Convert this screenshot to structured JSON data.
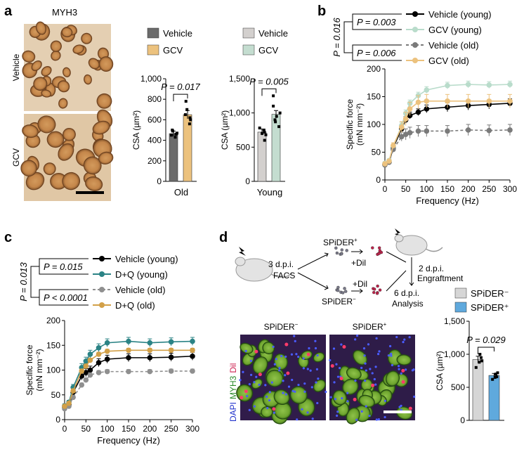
{
  "panels": {
    "a": {
      "letter": "a",
      "stain": "MYH3",
      "row_labels": [
        "Vehicle",
        "GCV"
      ],
      "legends": {
        "old": [
          "Vehicle",
          "GCV"
        ],
        "young": [
          "Vehicle",
          "GCV"
        ]
      },
      "colors": {
        "old_vehicle": "#6b6b6b",
        "old_gcv": "#ecc27e",
        "young_vehicle": "#d3d0ce",
        "young_gcv": "#c4ddd0"
      }
    },
    "b": {
      "letter": "b"
    },
    "c": {
      "letter": "c"
    },
    "d": {
      "letter": "d",
      "schematic": {
        "step1": "3 d.p.i.",
        "step1b": "FACS",
        "pos": "SPiDER",
        "pos_sup": "+",
        "neg": "SPiDER",
        "neg_sup": "−",
        "dil1": "+Dil",
        "dil2": "+Dil",
        "engraft1": "2 d.p.i.",
        "engraft2": "Engraftment",
        "analysis1": "6 d.p.i.",
        "analysis2": "Analysis"
      },
      "image_titles": [
        "SPiDER",
        "SPiDER"
      ],
      "image_title_sups": [
        "−",
        "+"
      ],
      "stain_labels": [
        "DAPI",
        "MYH3",
        "Dil"
      ],
      "colors": {
        "neg": "#d6d6d6",
        "pos": "#5fa9dd"
      }
    }
  },
  "chart_data": [
    {
      "id": "a-old",
      "type": "bar",
      "categories": [
        "Vehicle",
        "GCV"
      ],
      "values": [
        465,
        650
      ],
      "errors": [
        25,
        40
      ],
      "points": [
        [
          430,
          470,
          490,
          450,
          500,
          460
        ],
        [
          560,
          620,
          650,
          700,
          780,
          600
        ]
      ],
      "xlabel": "Old",
      "ylabel": "CSA (µm²)",
      "ylim": [
        0,
        1000
      ],
      "yticks": [
        "0",
        "200",
        "400",
        "600",
        "800",
        "1,000"
      ],
      "pvalue": "P = 0.017"
    },
    {
      "id": "a-young",
      "type": "bar",
      "categories": [
        "Vehicle",
        "GCV"
      ],
      "values": [
        720,
        980
      ],
      "errors": [
        45,
        55
      ],
      "points": [
        [
          600,
          700,
          750,
          720,
          780,
          680
        ],
        [
          800,
          900,
          950,
          1000,
          1100,
          1250,
          870
        ]
      ],
      "xlabel": "Young",
      "ylabel": "CSA (µm²)",
      "ylim": [
        0,
        1500
      ],
      "yticks": [
        "0",
        "500",
        "1,000",
        "1,500"
      ],
      "pvalue": "P = 0.005"
    },
    {
      "id": "b",
      "type": "line",
      "x": [
        0,
        10,
        20,
        40,
        50,
        60,
        80,
        100,
        150,
        200,
        250,
        300
      ],
      "series": [
        {
          "name": "Vehicle (young)",
          "color": "#000000",
          "dashed": false,
          "values": [
            28,
            32,
            58,
            92,
            108,
            116,
            122,
            128,
            131,
            134,
            136,
            138
          ],
          "errors": [
            3,
            3,
            4,
            6,
            6,
            6,
            6,
            7,
            8,
            8,
            8,
            8
          ]
        },
        {
          "name": "GCV (young)",
          "color": "#b9dccb",
          "dashed": false,
          "values": [
            30,
            35,
            60,
            98,
            120,
            138,
            152,
            162,
            170,
            172,
            171,
            172
          ],
          "errors": [
            3,
            3,
            4,
            6,
            6,
            6,
            6,
            6,
            6,
            6,
            6,
            6
          ]
        },
        {
          "name": "Vehicle (old)",
          "color": "#7a7a7a",
          "dashed": true,
          "values": [
            27,
            32,
            55,
            78,
            82,
            85,
            88,
            88,
            88,
            90,
            89,
            90
          ],
          "errors": [
            3,
            3,
            5,
            8,
            10,
            10,
            10,
            10,
            10,
            10,
            10,
            10
          ]
        },
        {
          "name": "GCV (old)",
          "color": "#ecc27e",
          "dashed": false,
          "values": [
            29,
            34,
            62,
            95,
            110,
            128,
            140,
            142,
            142,
            142,
            142,
            142
          ],
          "errors": [
            3,
            3,
            5,
            10,
            12,
            12,
            12,
            12,
            12,
            12,
            12,
            12
          ]
        }
      ],
      "xlabel": "Frequency (Hz)",
      "ylabel": "Specific force",
      "ylabel2": "(mN mm⁻²)",
      "xlim": [
        0,
        300
      ],
      "ylim": [
        0,
        200
      ],
      "xticks": [
        0,
        50,
        100,
        150,
        200,
        250,
        300
      ],
      "yticks": [
        0,
        50,
        100,
        150,
        200
      ],
      "p_outer": "P = 0.016",
      "p_inner1": "P = 0.003",
      "p_inner2": "P = 0.006"
    },
    {
      "id": "c",
      "type": "line",
      "x": [
        0,
        10,
        20,
        40,
        50,
        60,
        80,
        100,
        150,
        200,
        250,
        300
      ],
      "series": [
        {
          "name": "Vehicle (young)",
          "color": "#000000",
          "dashed": false,
          "values": [
            25,
            30,
            55,
            88,
            95,
            100,
            115,
            122,
            125,
            125,
            126,
            128
          ],
          "errors": [
            4,
            4,
            6,
            8,
            8,
            8,
            8,
            8,
            8,
            8,
            8,
            8
          ]
        },
        {
          "name": "D+Q (young)",
          "color": "#2b8385",
          "dashed": false,
          "values": [
            28,
            35,
            65,
            105,
            118,
            132,
            145,
            155,
            158,
            155,
            157,
            158
          ],
          "errors": [
            4,
            4,
            6,
            8,
            8,
            8,
            8,
            8,
            8,
            8,
            8,
            8
          ]
        },
        {
          "name": "Vehicle (old)",
          "color": "#8f8f8f",
          "dashed": true,
          "values": [
            22,
            27,
            45,
            70,
            80,
            90,
            95,
            97,
            97,
            97,
            98,
            98
          ],
          "errors": [
            3,
            3,
            4,
            4,
            4,
            4,
            4,
            4,
            4,
            4,
            4,
            4
          ]
        },
        {
          "name": "D+Q (old)",
          "color": "#d2a048",
          "dashed": false,
          "values": [
            27,
            33,
            58,
            98,
            108,
            120,
            132,
            138,
            140,
            140,
            140,
            140
          ],
          "errors": [
            3,
            3,
            4,
            4,
            4,
            4,
            4,
            4,
            4,
            4,
            4,
            4
          ]
        }
      ],
      "xlabel": "Frequency (Hz)",
      "ylabel": "Specific force",
      "ylabel2": "(mN mm⁻²)",
      "xlim": [
        0,
        300
      ],
      "ylim": [
        0,
        200
      ],
      "xticks": [
        0,
        50,
        100,
        150,
        200,
        250,
        300
      ],
      "yticks": [
        0,
        50,
        100,
        150,
        200
      ],
      "p_outer": "P = 0.013",
      "p_inner1": "P = 0.015",
      "p_inner2": "P < 0.0001"
    },
    {
      "id": "d",
      "type": "bar",
      "categories": [
        "SPiDER⁻",
        "SPiDER⁺"
      ],
      "values": [
        920,
        680
      ],
      "errors": [
        50,
        30
      ],
      "points": [
        [
          800,
          900,
          950,
          1000,
          880
        ],
        [
          620,
          660,
          700,
          720,
          650
        ]
      ],
      "ylabel": "CSA (µm²)",
      "ylim": [
        0,
        1500
      ],
      "yticks": [
        "0",
        "500",
        "1,000",
        "1,500"
      ],
      "pvalue": "P = 0.029"
    }
  ]
}
